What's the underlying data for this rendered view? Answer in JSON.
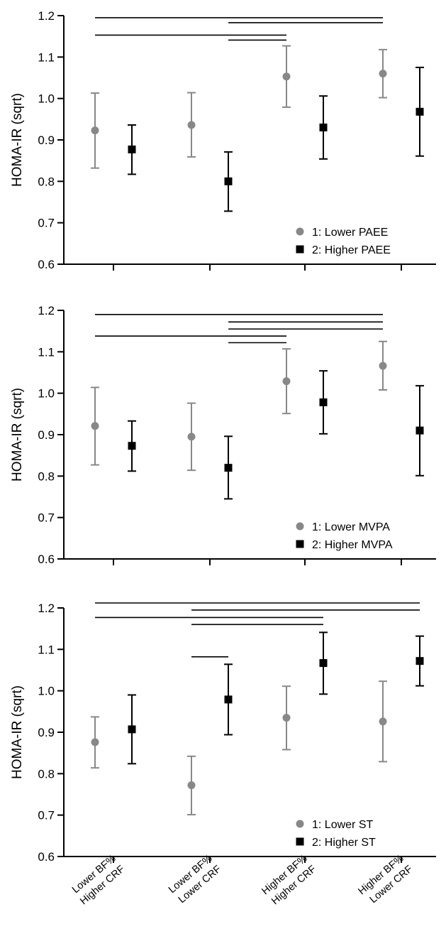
{
  "chart_data": [
    {
      "type": "scatter",
      "ylabel": "HOMA-IR (sqrt)",
      "ylim": [
        0.6,
        1.2
      ],
      "yticks": [
        "0.6",
        "0.7",
        "0.8",
        "0.9",
        "1.0",
        "1.1",
        "1.2"
      ],
      "legend_position": "bottom-right",
      "colors": {
        "series1": "#888888",
        "series2": "#000000"
      },
      "markers": {
        "series1": "circle",
        "series2": "square"
      },
      "series": [
        {
          "name": "1: Lower PAEE",
          "values": [
            0.923,
            0.936,
            1.053,
            1.06
          ],
          "err_low": [
            0.832,
            0.859,
            0.979,
            1.002
          ],
          "err_high": [
            1.013,
            1.014,
            1.127,
            1.118
          ]
        },
        {
          "name": "2: Higher PAEE",
          "values": [
            0.877,
            0.8,
            0.93,
            0.968
          ],
          "err_low": [
            0.817,
            0.728,
            0.854,
            0.861
          ],
          "err_high": [
            0.936,
            0.871,
            1.006,
            1.075
          ]
        }
      ],
      "significance_brackets": [
        {
          "from": [
            0,
            0
          ],
          "to": [
            3,
            0
          ],
          "level": 1.195
        },
        {
          "from": [
            1,
            1
          ],
          "to": [
            3,
            0
          ],
          "level": 1.183
        },
        {
          "from": [
            0,
            0
          ],
          "to": [
            2,
            0
          ],
          "level": 1.153
        },
        {
          "from": [
            1,
            1
          ],
          "to": [
            2,
            0
          ],
          "level": 1.141
        }
      ]
    },
    {
      "type": "scatter",
      "ylabel": "HOMA-IR (sqrt)",
      "ylim": [
        0.6,
        1.2
      ],
      "yticks": [
        "0.6",
        "0.7",
        "0.8",
        "0.9",
        "1.0",
        "1.1",
        "1.2"
      ],
      "legend_position": "bottom-right",
      "colors": {
        "series1": "#888888",
        "series2": "#000000"
      },
      "markers": {
        "series1": "circle",
        "series2": "square"
      },
      "series": [
        {
          "name": "1: Lower MVPA",
          "values": [
            0.921,
            0.895,
            1.029,
            1.066
          ],
          "err_low": [
            0.827,
            0.814,
            0.951,
            1.008
          ],
          "err_high": [
            1.014,
            0.976,
            1.107,
            1.125
          ]
        },
        {
          "name": "2: Higher MVPA",
          "values": [
            0.873,
            0.82,
            0.978,
            0.91
          ],
          "err_low": [
            0.812,
            0.745,
            0.902,
            0.801
          ],
          "err_high": [
            0.933,
            0.896,
            1.054,
            1.018
          ]
        }
      ],
      "significance_brackets": [
        {
          "from": [
            0,
            0
          ],
          "to": [
            3,
            0
          ],
          "level": 1.19
        },
        {
          "from": [
            1,
            1
          ],
          "to": [
            3,
            0
          ],
          "level": 1.172
        },
        {
          "from": [
            1,
            1
          ],
          "to": [
            3,
            0
          ],
          "level": 1.155
        },
        {
          "from": [
            0,
            0
          ],
          "to": [
            2,
            0
          ],
          "level": 1.138
        },
        {
          "from": [
            1,
            1
          ],
          "to": [
            2,
            0
          ],
          "level": 1.122
        }
      ]
    },
    {
      "type": "scatter",
      "ylabel": "HOMA-IR (sqrt)",
      "ylim": [
        0.6,
        1.2
      ],
      "yticks": [
        "0.6",
        "0.7",
        "0.8",
        "0.9",
        "1.0",
        "1.1",
        "1.2"
      ],
      "legend_position": "bottom-right",
      "colors": {
        "series1": "#888888",
        "series2": "#000000"
      },
      "markers": {
        "series1": "circle",
        "series2": "square"
      },
      "series": [
        {
          "name": "1: Lower ST",
          "values": [
            0.876,
            0.772,
            0.935,
            0.926
          ],
          "err_low": [
            0.814,
            0.701,
            0.858,
            0.829
          ],
          "err_high": [
            0.937,
            0.842,
            1.011,
            1.023
          ]
        },
        {
          "name": "2: Higher ST",
          "values": [
            0.907,
            0.979,
            1.067,
            1.072
          ],
          "err_low": [
            0.824,
            0.894,
            0.992,
            1.012
          ],
          "err_high": [
            0.99,
            1.064,
            1.141,
            1.132
          ]
        }
      ],
      "significance_brackets": [
        {
          "from": [
            0,
            0
          ],
          "to": [
            3,
            1
          ],
          "level": 1.212
        },
        {
          "from": [
            1,
            0
          ],
          "to": [
            3,
            1
          ],
          "level": 1.195
        },
        {
          "from": [
            0,
            0
          ],
          "to": [
            2,
            1
          ],
          "level": 1.177
        },
        {
          "from": [
            1,
            0
          ],
          "to": [
            2,
            1
          ],
          "level": 1.16
        },
        {
          "from": [
            1,
            0
          ],
          "to": [
            1,
            1
          ],
          "level": 1.082
        }
      ]
    }
  ],
  "categories": [
    [
      "Lower BF%",
      "Higher CRF"
    ],
    [
      "Lower BF%",
      "Lower CRF"
    ],
    [
      "Higher BF%",
      "Higher CRF"
    ],
    [
      "Higher BF%",
      "Lower CRF"
    ]
  ]
}
